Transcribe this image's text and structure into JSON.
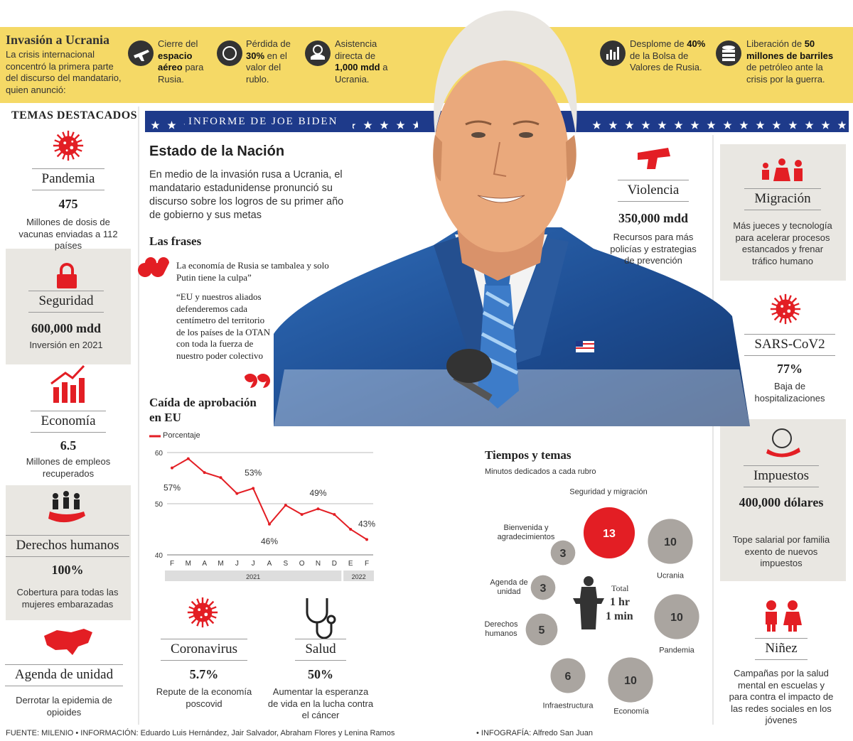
{
  "header": {
    "title": "Invasión a Ucrania",
    "text": "La crisis internacional concentró la primera parte del discurso del mandatario, quien anunció:",
    "items": [
      {
        "pre": "Cierre del",
        "bold": "espacio aéreo",
        "post": "para Rusia."
      },
      {
        "pre": "Pérdida de",
        "bold": "30%",
        "post": "en el valor del rublo."
      },
      {
        "pre": "Asistencia directa de",
        "bold": "1,000 mdd",
        "post": "a Ucrania."
      },
      {
        "pre": "Desplome de",
        "bold": "40%",
        "post": "de la Bolsa de Valores de Rusia."
      },
      {
        "pre": "Liberación de",
        "bold": "50 millones de barriles",
        "post": "de petróleo ante la crisis por la guerra."
      }
    ]
  },
  "banner": "INFORME DE JOE BIDEN",
  "topics_title": "TEMAS DESTACADOS",
  "topics": [
    {
      "name": "Pandemia",
      "figure": "475",
      "text": "Millones de dosis de vacunas enviadas a 112 países"
    },
    {
      "name": "Seguridad",
      "figure": "600,000 mdd",
      "text": "Inversión en 2021"
    },
    {
      "name": "Economía",
      "figure": "6.5",
      "text": "Millones de empleos recuperados"
    },
    {
      "name": "Derechos humanos",
      "figure": "100%",
      "text": "Cobertura para todas las mujeres embarazadas"
    },
    {
      "name": "Agenda de unidad",
      "text": "Derrotar la epidemia de opioides"
    },
    {
      "name": "Coronavirus",
      "figure": "5.7%",
      "text": "Repute de la economía poscovid"
    },
    {
      "name": "Salud",
      "figure": "50%",
      "text": "Aumentar la esperanza de vida en la lucha contra el cáncer"
    },
    {
      "name": "Violencia",
      "figure": "350,000 mdd",
      "text": "Recursos para más policías y estrategias de prevención"
    },
    {
      "name": "Migración",
      "text": "Más jueces y tecnología para acelerar procesos estancados y frenar tráfico humano"
    },
    {
      "name": "SARS-CoV2",
      "figure": "77%",
      "text": "Baja de hospitalizaciones"
    },
    {
      "name": "Impuestos",
      "figure": "400,000 dólares",
      "text": "Tope salarial por familia exento de nuevos impuestos"
    },
    {
      "name": "Niñez",
      "text": "Campañas por la salud mental en escuelas y para contra el impacto de las redes sociales en los jóvenes"
    }
  ],
  "intro": {
    "title": "Estado de la Nación",
    "text": "En medio de la invasión rusa a Ucrania, el mandatario estadunidense pronunció su discurso sobre los logros de su primer año de gobierno y sus metas"
  },
  "quotes": {
    "title": "Las frases",
    "items": [
      "La economía de Rusia se tambalea y solo Putin tiene la culpa”",
      "“EU y nuestros aliados defenderemos cada centímetro del territorio de los países de la OTAN con toda la fuerza de nuestro poder colectivo"
    ]
  },
  "chart_data": [
    {
      "type": "line",
      "title": "Caída de aprobación en EU",
      "categories": [
        "F",
        "M",
        "A",
        "M",
        "J",
        "J",
        "A",
        "S",
        "O",
        "N",
        "D",
        "E",
        "F"
      ],
      "year_groups": [
        {
          "label": "2021",
          "size": 11
        },
        {
          "label": "2022",
          "size": 2
        }
      ],
      "series": [
        {
          "name": "Porcentaje",
          "color": "#e31e24",
          "values": [
            57,
            58.8,
            56.1,
            55.1,
            52,
            53,
            46,
            49.7,
            47.9,
            49,
            47.9,
            45,
            43
          ],
          "value_labels": [
            "57%",
            null,
            null,
            null,
            null,
            "53%",
            "46%",
            null,
            null,
            "49%",
            null,
            null,
            "43%"
          ]
        }
      ],
      "ylim": [
        40,
        60
      ],
      "yticks": [
        40,
        50,
        60
      ],
      "grid": true
    },
    {
      "type": "bubble",
      "title": "Tiempos y temas",
      "subtitle": "Minutos dedicados a cada rubro",
      "categories": [
        "Seguridad y migración",
        "Ucrania",
        "Pandemia",
        "Economía",
        "Infraestructura",
        "Derechos humanos",
        "Agenda de unidad",
        "Bienvenida y agradecimientos"
      ],
      "values": [
        13,
        10,
        10,
        10,
        6,
        5,
        3,
        3
      ],
      "colors": [
        "#e31e24",
        "#aaa5a0",
        "#aaa5a0",
        "#aaa5a0",
        "#aaa5a0",
        "#aaa5a0",
        "#aaa5a0",
        "#aaa5a0"
      ],
      "center": {
        "label": "Total",
        "hours": "1 hr",
        "minutes": "1 min"
      }
    }
  ],
  "footer": {
    "source": "FUENTE: MILENIO • INFORMACIÓN: Eduardo Luis Hernández, Jair Salvador, Abraham Flores y Lenina Ramos",
    "credit": "• INFOGRAFÍA: Alfredo San Juan"
  }
}
